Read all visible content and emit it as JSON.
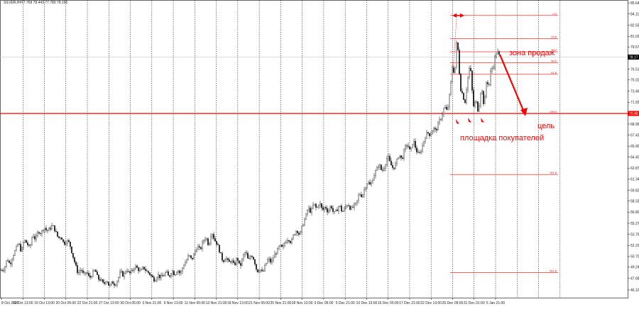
{
  "header": {
    "symbol": "SILVER,H4",
    "quote": "77.769 78.443 77.780 78.165"
  },
  "chart_data": {
    "type": "candlestick",
    "symbol": "SILVER",
    "timeframe": "H4",
    "ylim": [
      46.1,
      85.64
    ],
    "y_ticks": [
      "85.64",
      "84.11",
      "82.55",
      "81.03",
      "79.57",
      "78.16",
      "76.51",
      "75.02",
      "73.46",
      "71.93",
      "70.40",
      "68.95",
      "67.43",
      "65.90",
      "64.40",
      "62.87",
      "61.34",
      "59.82",
      "58.33",
      "56.80",
      "55.27",
      "53.75",
      "52.23",
      "50.70",
      "49.24",
      "47.68",
      "46.10"
    ],
    "x_ticks": [
      "8 Oct 2025",
      "10 Oct 13:00",
      "15 Oct 13:00",
      "20 Oct 05:00",
      "22 Oct 21:00",
      "27 Oct 13:00",
      "30 Oct 05:00",
      "3 Nov 21:00",
      "6 Nov 13:00",
      "11 Nov 05:00",
      "13 Nov 21:00",
      "18 Nov 13:00",
      "21 Nov 05:00",
      "25 Nov 21:00",
      "28 Nov 13:00",
      "3 Dec 05:00",
      "5 Dec 21:00",
      "10 Dec 13:00",
      "15 Dec 05:00",
      "17 Dec 21:00",
      "22 Dec 13:00",
      "26 Dec 09:00",
      "31 Dec 01:00",
      "5 Jan 21:00"
    ],
    "current_price": 78.165,
    "support_level": 70.4,
    "support_label": "70.40",
    "fibonacci": {
      "levels": [
        {
          "label": "0.0",
          "price": 83.9
        },
        {
          "label": "23.6",
          "price": 80.7
        },
        {
          "label": "38.2",
          "price": 78.9
        },
        {
          "label": "50.0",
          "price": 77.4
        },
        {
          "label": "61.8",
          "price": 75.8
        },
        {
          "label": "100.0",
          "price": 70.4
        },
        {
          "label": "161.8",
          "price": 62.0
        },
        {
          "label": "261.8",
          "price": 48.5
        }
      ]
    },
    "annotations": {
      "sell_zone": "зона продаж",
      "target": "цель",
      "buyers_area": "площадка покупателей"
    },
    "price_path": [
      [
        0,
        48.8
      ],
      [
        6,
        49.0
      ],
      [
        10,
        50.4
      ],
      [
        14,
        49.6
      ],
      [
        18,
        50.8
      ],
      [
        22,
        51.6
      ],
      [
        26,
        52.6
      ],
      [
        30,
        51.3
      ],
      [
        34,
        53.0
      ],
      [
        38,
        52.5
      ],
      [
        42,
        51.8
      ],
      [
        46,
        53.8
      ],
      [
        50,
        53.0
      ],
      [
        54,
        54.2
      ],
      [
        58,
        53.9
      ],
      [
        62,
        54.8
      ],
      [
        66,
        54.2
      ],
      [
        70,
        54.5
      ],
      [
        74,
        55.0
      ],
      [
        78,
        54.2
      ],
      [
        82,
        53.2
      ],
      [
        86,
        53.5
      ],
      [
        90,
        52.4
      ],
      [
        94,
        52.9
      ],
      [
        98,
        52.5
      ],
      [
        102,
        51.0
      ],
      [
        106,
        49.6
      ],
      [
        110,
        48.3
      ],
      [
        114,
        49.0
      ],
      [
        118,
        48.1
      ],
      [
        122,
        48.6
      ],
      [
        126,
        47.7
      ],
      [
        130,
        48.3
      ],
      [
        134,
        48.9
      ],
      [
        138,
        47.6
      ],
      [
        142,
        47.5
      ],
      [
        146,
        46.8
      ],
      [
        150,
        47.6
      ],
      [
        154,
        46.5
      ],
      [
        158,
        47.2
      ],
      [
        162,
        46.8
      ],
      [
        166,
        47.6
      ],
      [
        170,
        48.6
      ],
      [
        174,
        48.0
      ],
      [
        178,
        49.0
      ],
      [
        182,
        48.3
      ],
      [
        186,
        48.7
      ],
      [
        190,
        49.4
      ],
      [
        194,
        49.0
      ],
      [
        198,
        48.6
      ],
      [
        202,
        49.2
      ],
      [
        206,
        48.7
      ],
      [
        210,
        48.4
      ],
      [
        214,
        47.9
      ],
      [
        218,
        47.4
      ],
      [
        222,
        48.2
      ],
      [
        226,
        47.8
      ],
      [
        230,
        48.0
      ],
      [
        234,
        48.6
      ],
      [
        238,
        47.8
      ],
      [
        242,
        48.8
      ],
      [
        246,
        48.2
      ],
      [
        250,
        48.9
      ],
      [
        254,
        48.3
      ],
      [
        258,
        49.4
      ],
      [
        262,
        50.0
      ],
      [
        266,
        50.9
      ],
      [
        270,
        50.2
      ],
      [
        274,
        51.2
      ],
      [
        278,
        52.1
      ],
      [
        282,
        51.6
      ],
      [
        286,
        52.8
      ],
      [
        290,
        53.4
      ],
      [
        294,
        52.2
      ],
      [
        298,
        54.2
      ],
      [
        302,
        53.0
      ],
      [
        306,
        52.4
      ],
      [
        310,
        51.2
      ],
      [
        314,
        50.0
      ],
      [
        318,
        50.6
      ],
      [
        322,
        49.8
      ],
      [
        326,
        50.2
      ],
      [
        330,
        49.4
      ],
      [
        334,
        50.6
      ],
      [
        338,
        49.2
      ],
      [
        342,
        50.6
      ],
      [
        346,
        51.4
      ],
      [
        350,
        50.0
      ],
      [
        354,
        51.0
      ],
      [
        358,
        50.2
      ],
      [
        362,
        48.6
      ],
      [
        366,
        49.0
      ],
      [
        370,
        48.4
      ],
      [
        374,
        49.6
      ],
      [
        378,
        50.4
      ],
      [
        382,
        49.8
      ],
      [
        386,
        50.8
      ],
      [
        390,
        51.4
      ],
      [
        394,
        52.2
      ],
      [
        398,
        51.8
      ],
      [
        402,
        52.8
      ],
      [
        406,
        53.2
      ],
      [
        410,
        52.6
      ],
      [
        414,
        53.8
      ],
      [
        418,
        54.4
      ],
      [
        422,
        53.6
      ],
      [
        426,
        55.0
      ],
      [
        430,
        56.0
      ],
      [
        434,
        57.4
      ],
      [
        438,
        56.8
      ],
      [
        442,
        58.0
      ],
      [
        446,
        57.2
      ],
      [
        450,
        58.2
      ],
      [
        454,
        57.0
      ],
      [
        458,
        57.6
      ],
      [
        462,
        56.8
      ],
      [
        466,
        57.8
      ],
      [
        470,
        56.6
      ],
      [
        474,
        57.0
      ],
      [
        478,
        57.8
      ],
      [
        482,
        56.8
      ],
      [
        486,
        57.4
      ],
      [
        490,
        58.0
      ],
      [
        494,
        57.2
      ],
      [
        498,
        57.6
      ],
      [
        502,
        58.0
      ],
      [
        506,
        59.4
      ],
      [
        510,
        59.0
      ],
      [
        514,
        60.2
      ],
      [
        518,
        61.0
      ],
      [
        522,
        60.4
      ],
      [
        526,
        61.8
      ],
      [
        530,
        62.6
      ],
      [
        534,
        63.4
      ],
      [
        538,
        62.4
      ],
      [
        542,
        63.2
      ],
      [
        546,
        64.6
      ],
      [
        550,
        63.4
      ],
      [
        554,
        62.8
      ],
      [
        558,
        63.6
      ],
      [
        562,
        64.8
      ],
      [
        566,
        64.0
      ],
      [
        570,
        65.6
      ],
      [
        574,
        66.2
      ],
      [
        578,
        65.0
      ],
      [
        582,
        66.8
      ],
      [
        586,
        65.4
      ],
      [
        590,
        64.6
      ],
      [
        594,
        65.6
      ],
      [
        598,
        67.0
      ],
      [
        602,
        67.8
      ],
      [
        606,
        67.4
      ],
      [
        610,
        68.4
      ],
      [
        614,
        68.0
      ],
      [
        618,
        69.2
      ],
      [
        622,
        70.0
      ],
      [
        626,
        71.4
      ],
      [
        630,
        70.6
      ],
      [
        634,
        73.6
      ],
      [
        638,
        77.8
      ],
      [
        640,
        74.6
      ],
      [
        642,
        79.0
      ],
      [
        644,
        81.0
      ],
      [
        646,
        77.2
      ],
      [
        648,
        74.8
      ],
      [
        650,
        72.6
      ],
      [
        652,
        73.8
      ],
      [
        654,
        71.2
      ],
      [
        656,
        72.8
      ],
      [
        658,
        74.8
      ],
      [
        660,
        76.0
      ],
      [
        662,
        77.2
      ],
      [
        664,
        75.0
      ],
      [
        666,
        72.0
      ],
      [
        668,
        70.9
      ],
      [
        670,
        72.8
      ],
      [
        672,
        71.0
      ],
      [
        674,
        70.8
      ],
      [
        676,
        72.6
      ],
      [
        678,
        74.2
      ],
      [
        680,
        72.6
      ],
      [
        682,
        71.2
      ],
      [
        684,
        73.8
      ],
      [
        686,
        75.6
      ],
      [
        688,
        73.6
      ],
      [
        690,
        75.2
      ],
      [
        692,
        77.0
      ],
      [
        694,
        76.2
      ],
      [
        696,
        77.8
      ],
      [
        698,
        78.4
      ],
      [
        700,
        79.0
      ],
      [
        702,
        78.6
      ],
      [
        704,
        78.2
      ]
    ]
  }
}
